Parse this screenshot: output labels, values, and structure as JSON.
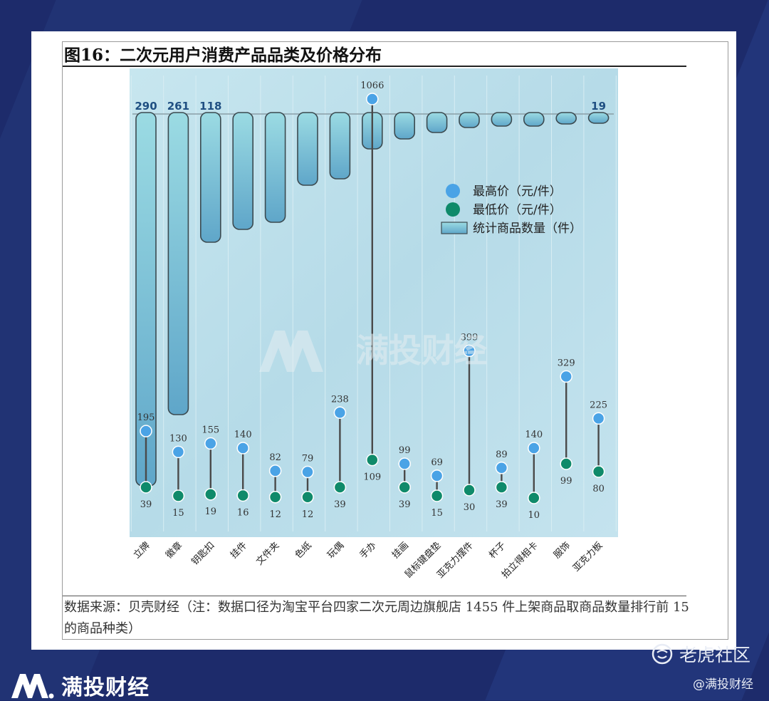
{
  "figure": {
    "title": "图16：二次元用户消费产品品类及价格分布",
    "source": "数据来源：贝壳财经（注：数据口径为淘宝平台四家二次元周边旗舰店 1455 件上架商品取商品数量排行前 15 的商品种类）"
  },
  "watermark": {
    "text": "满投财经"
  },
  "footer": {
    "brand": "满投财经",
    "community": "老虎社区",
    "handle": "@满投财经"
  },
  "colors": {
    "bar_fill_top": "#8fd3df",
    "bar_fill_bottom": "#5ba9c8",
    "bar_stroke": "#3b4a50",
    "high_point": "#4aa3e6",
    "low_point": "#0f8a6a",
    "stem": "#4a4a4a",
    "plot_bg": "#bfe0ec"
  },
  "chart_data": {
    "type": "bar",
    "title": "",
    "categories": [
      "立牌",
      "徽章",
      "钥匙扣",
      "挂件",
      "文件夹",
      "色纸",
      "玩偶",
      "手办",
      "挂画",
      "鼠标键盘垫",
      "亚克力摆件",
      "杯子",
      "拍立得相卡",
      "服饰",
      "亚克力板"
    ],
    "legend_position": "right",
    "series": [
      {
        "name": "最高价（元/件）",
        "kind": "point",
        "values": [
          195,
          130,
          155,
          140,
          82,
          79,
          238,
          1066,
          99,
          69,
          399,
          89,
          140,
          329,
          225
        ]
      },
      {
        "name": "最低价（元/件）",
        "kind": "point",
        "values": [
          39,
          15,
          19,
          16,
          12,
          12,
          39,
          109,
          39,
          15,
          30,
          39,
          10,
          99,
          80
        ]
      },
      {
        "name": "统计商品数量（件）",
        "kind": "bar",
        "values": [
          290,
          261,
          118,
          null,
          null,
          null,
          null,
          null,
          null,
          null,
          null,
          null,
          null,
          null,
          19
        ]
      }
    ],
    "bar_value_labels": [
      "290",
      "261",
      "118",
      "19"
    ],
    "grid": true
  }
}
